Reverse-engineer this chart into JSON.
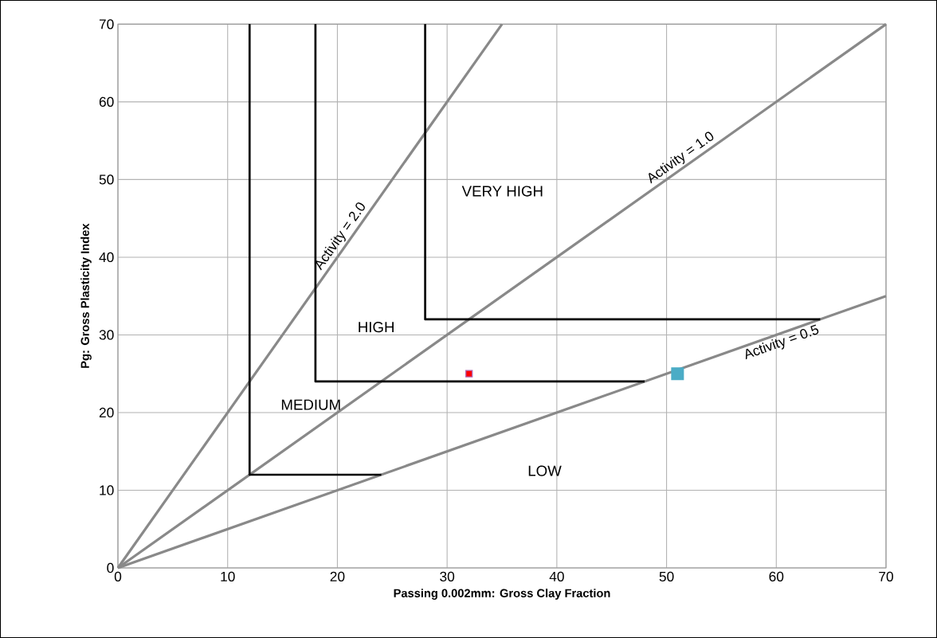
{
  "chart_data": {
    "type": "line",
    "xlabel": "Passing 0.002mm: Gross Clay Fraction",
    "ylabel": "Pg: Gross Plasticity Index",
    "xlim": [
      0,
      70
    ],
    "ylim": [
      0,
      70
    ],
    "xticks": [
      0,
      10,
      20,
      30,
      40,
      50,
      60,
      70
    ],
    "yticks": [
      0,
      10,
      20,
      30,
      40,
      50,
      60,
      70
    ],
    "grid": true,
    "marker": "none",
    "line_style": "solid",
    "series": [
      {
        "name": "Activity = 2.0",
        "color": "#898989",
        "x": [
          0,
          35
        ],
        "values": [
          0,
          70
        ]
      },
      {
        "name": "Activity = 1.0",
        "color": "#898989",
        "x": [
          0,
          70
        ],
        "values": [
          0,
          70
        ]
      },
      {
        "name": "Activity = 0.5",
        "color": "#898989",
        "x": [
          0,
          70
        ],
        "values": [
          0,
          35
        ]
      },
      {
        "color": "#000000",
        "x": [
          12,
          12,
          24
        ],
        "values": [
          70,
          12,
          12
        ]
      },
      {
        "color": "#000000",
        "x": [
          18,
          18,
          48
        ],
        "values": [
          70,
          24,
          24
        ]
      },
      {
        "color": "#000000",
        "x": [
          28,
          28,
          64
        ],
        "values": [
          70,
          32,
          32
        ]
      },
      {
        "type": "scatter",
        "marker": "square",
        "color": "#ff0000",
        "x": [
          32
        ],
        "values": [
          25
        ]
      },
      {
        "type": "scatter",
        "marker": "square",
        "color": "#4bacc6",
        "x": [
          51
        ],
        "values": [
          25
        ]
      }
    ],
    "annotations": [
      "VERY HIGH",
      "HIGH",
      "MEDIUM",
      "LOW"
    ]
  }
}
